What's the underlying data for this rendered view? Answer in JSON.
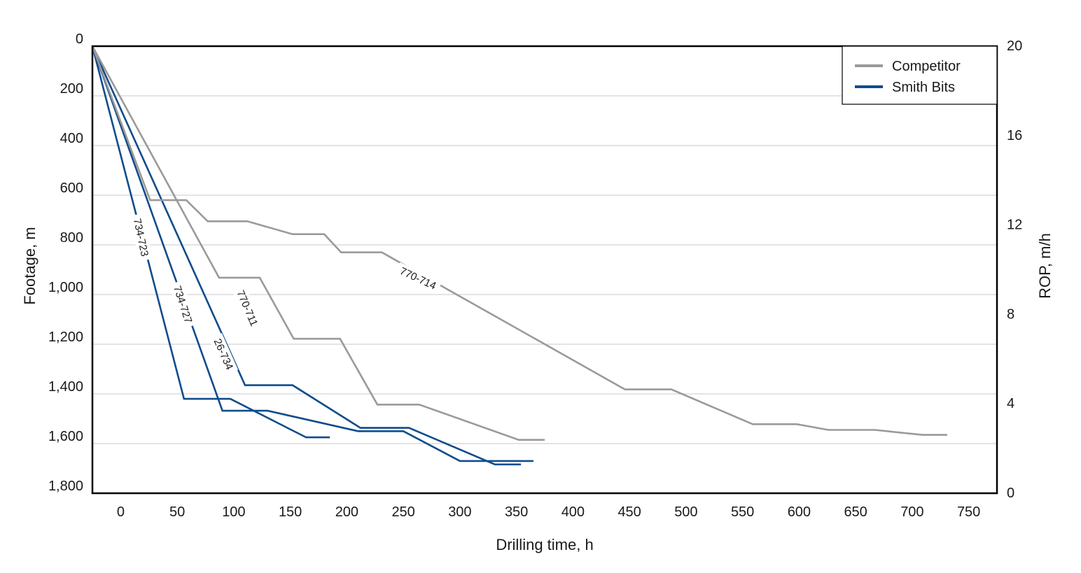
{
  "chart_data": {
    "type": "line",
    "xlabel": "Drilling time, h",
    "ylabel": "Footage, m",
    "y2label": "ROP, m/h",
    "xlim": [
      -25,
      775
    ],
    "ylim": [
      0,
      1800
    ],
    "y2lim": [
      0,
      20
    ],
    "y_inverted": true,
    "x_ticks": [
      "0",
      "50",
      "100",
      "150",
      "200",
      "250",
      "300",
      "350",
      "400",
      "450",
      "500",
      "550",
      "600",
      "650",
      "700",
      "750"
    ],
    "y_ticks": [
      "0",
      "200",
      "400",
      "600",
      "800",
      "1,000",
      "1,200",
      "1,400",
      "1,600",
      "1,800"
    ],
    "y2_ticks": [
      "20",
      "16",
      "12",
      "8",
      "4",
      "0"
    ],
    "grid": "horizontal",
    "legend_position": "top-right",
    "legend": [
      {
        "name": "Competitor",
        "color": "#9a9a9a"
      },
      {
        "name": "Smith Bits",
        "color": "#0f4c8c"
      }
    ],
    "colors": {
      "competitor": "#9a9a9a",
      "smith": "#0f4c8c"
    },
    "series": [
      {
        "label": "734-723",
        "group": "Smith Bits",
        "x": [
          -25,
          56,
          97,
          164,
          185
        ],
        "y": [
          0,
          1420,
          1420,
          1575,
          1575
        ]
      },
      {
        "label": "734-727",
        "group": "Smith Bits",
        "x": [
          -25,
          90,
          130,
          210,
          250,
          300,
          365
        ],
        "y": [
          0,
          1468,
          1468,
          1550,
          1550,
          1670,
          1670
        ]
      },
      {
        "label": "26-734",
        "group": "Smith Bits",
        "x": [
          -25,
          110,
          152,
          212,
          255,
          331,
          354
        ],
        "y": [
          0,
          1365,
          1365,
          1537,
          1537,
          1684,
          1684
        ]
      },
      {
        "label": "770-711",
        "group": "Competitor",
        "x": [
          -25,
          87,
          123,
          153,
          194,
          227,
          264,
          352,
          375
        ],
        "y": [
          0,
          932,
          932,
          1178,
          1178,
          1443,
          1443,
          1585,
          1585
        ]
      },
      {
        "label": "770-714",
        "group": "Competitor",
        "x": [
          -25,
          26,
          58,
          77,
          112,
          152,
          180,
          195,
          231,
          446,
          487,
          559,
          598,
          626,
          667,
          709,
          731
        ],
        "y": [
          0,
          620,
          620,
          705,
          705,
          757,
          757,
          830,
          830,
          1382,
          1382,
          1522,
          1522,
          1545,
          1545,
          1565,
          1565
        ]
      }
    ],
    "annotations": [
      {
        "text": "734-723",
        "series": "734-723",
        "x": 18,
        "y": 770,
        "angle": 78
      },
      {
        "text": "734-727",
        "series": "734-727",
        "x": 55,
        "y": 1040,
        "angle": 72
      },
      {
        "text": "26-734",
        "series": "26-734",
        "x": 91,
        "y": 1240,
        "angle": 66
      },
      {
        "text": "770-711",
        "series": "770-711",
        "x": 112,
        "y": 1055,
        "angle": 67
      },
      {
        "text": "770-714",
        "series": "770-714",
        "x": 263,
        "y": 935,
        "angle": 25
      }
    ]
  }
}
